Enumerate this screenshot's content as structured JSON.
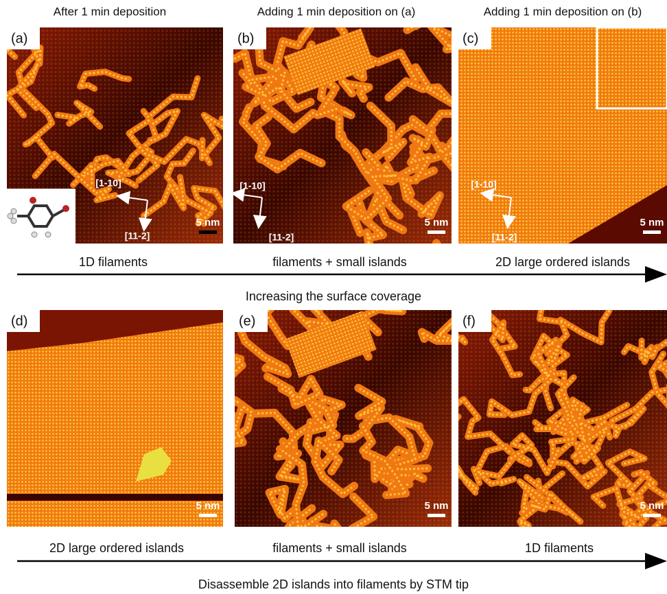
{
  "headers": [
    "After 1 min deposition",
    "Adding 1 min deposition on (a)",
    "Adding 1 min deposition on (b)"
  ],
  "panels": [
    {
      "label": "(a)",
      "scale_bar": "5 nm",
      "directions": [
        "[1-10]",
        "[11-2]"
      ]
    },
    {
      "label": "(b)",
      "scale_bar": "5 nm",
      "directions": [
        "[1-10]",
        "[11-2]"
      ]
    },
    {
      "label": "(c)",
      "scale_bar": "5 nm",
      "directions": [
        "[1-10]",
        "[11-2]"
      ]
    },
    {
      "label": "(d)",
      "scale_bar": "5 nm"
    },
    {
      "label": "(e)",
      "scale_bar": "5 nm"
    },
    {
      "label": "(f)",
      "scale_bar": "5 nm"
    }
  ],
  "captions_top": [
    "1D filaments",
    "filaments + small islands",
    "2D large ordered islands"
  ],
  "arrow_top": "Increasing the surface coverage",
  "captions_bottom": [
    "2D large ordered islands",
    "filaments + small islands",
    "1D filaments"
  ],
  "arrow_bottom": "Disassemble 2D islands into filaments by STM tip"
}
